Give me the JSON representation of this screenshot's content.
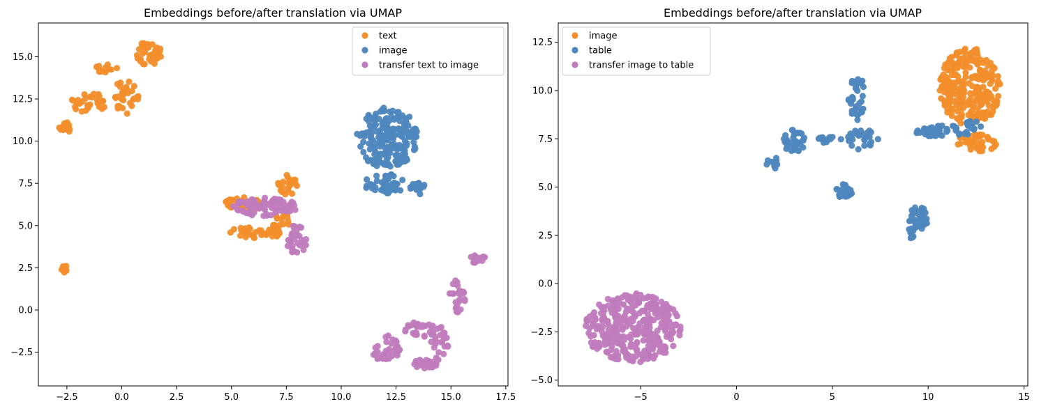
{
  "chart_data": [
    {
      "type": "scatter",
      "title": "Embeddings before/after translation via UMAP",
      "xlabel": "",
      "ylabel": "",
      "xlim": [
        -3.8,
        17.6
      ],
      "ylim": [
        -4.5,
        17.0
      ],
      "xticks": [
        -2.5,
        0.0,
        2.5,
        5.0,
        7.5,
        10.0,
        12.5,
        15.0,
        17.5
      ],
      "yticks": [
        -2.5,
        0.0,
        2.5,
        5.0,
        7.5,
        10.0,
        12.5,
        15.0
      ],
      "xtick_labels": [
        "−2.5",
        "0.0",
        "2.5",
        "5.0",
        "7.5",
        "10.0",
        "12.5",
        "15.0",
        "17.5"
      ],
      "ytick_labels": [
        "−2.5",
        "0.0",
        "2.5",
        "5.0",
        "7.5",
        "10.0",
        "12.5",
        "15.0"
      ],
      "grid": false,
      "legend_position": "top-right",
      "series": [
        {
          "name": "text",
          "color": "#f28e2b",
          "clusters": [
            {
              "cx": -2.6,
              "cy": 10.8,
              "rx": 0.25,
              "ry": 0.4,
              "n": 14
            },
            {
              "cx": -1.5,
              "cy": 12.3,
              "rx": 0.8,
              "ry": 0.6,
              "n": 30
            },
            {
              "cx": -0.7,
              "cy": 14.3,
              "rx": 0.5,
              "ry": 0.25,
              "n": 12
            },
            {
              "cx": 0.2,
              "cy": 12.6,
              "rx": 0.6,
              "ry": 1.1,
              "n": 30
            },
            {
              "cx": 1.2,
              "cy": 15.2,
              "rx": 0.6,
              "ry": 0.7,
              "n": 35
            },
            {
              "cx": -2.6,
              "cy": 2.4,
              "rx": 0.15,
              "ry": 0.25,
              "n": 10
            },
            {
              "cx": 5.5,
              "cy": 6.3,
              "rx": 0.9,
              "ry": 0.45,
              "n": 35
            },
            {
              "cx": 6.2,
              "cy": 4.6,
              "rx": 1.3,
              "ry": 0.35,
              "n": 40
            },
            {
              "cx": 7.6,
              "cy": 7.4,
              "rx": 0.5,
              "ry": 0.6,
              "n": 22
            },
            {
              "cx": 7.2,
              "cy": 5.4,
              "rx": 0.5,
              "ry": 0.6,
              "n": 18
            }
          ]
        },
        {
          "name": "image",
          "color": "#4e86be",
          "clusters": [
            {
              "cx": 12.1,
              "cy": 10.2,
              "rx": 1.4,
              "ry": 1.8,
              "n": 200
            },
            {
              "cx": 12.0,
              "cy": 7.5,
              "rx": 1.0,
              "ry": 0.6,
              "n": 45
            },
            {
              "cx": 13.5,
              "cy": 7.2,
              "rx": 0.35,
              "ry": 0.35,
              "n": 15
            }
          ]
        },
        {
          "name": "transfer text to image",
          "color": "#c07bbd",
          "clusters": [
            {
              "cx": 6.5,
              "cy": 6.1,
              "rx": 1.5,
              "ry": 0.55,
              "n": 75
            },
            {
              "cx": 8.0,
              "cy": 4.2,
              "rx": 0.5,
              "ry": 0.9,
              "n": 30
            },
            {
              "cx": 12.0,
              "cy": -2.2,
              "rx": 0.7,
              "ry": 0.9,
              "n": 35
            },
            {
              "cx": 13.6,
              "cy": -1.2,
              "rx": 0.7,
              "ry": 0.5,
              "n": 30
            },
            {
              "cx": 13.8,
              "cy": -3.2,
              "rx": 0.6,
              "ry": 0.3,
              "n": 30
            },
            {
              "cx": 14.5,
              "cy": -2.0,
              "rx": 0.4,
              "ry": 1.0,
              "n": 25
            },
            {
              "cx": 15.3,
              "cy": 0.8,
              "rx": 0.4,
              "ry": 1.0,
              "n": 25
            },
            {
              "cx": 16.2,
              "cy": 3.0,
              "rx": 0.4,
              "ry": 0.25,
              "n": 15
            }
          ]
        }
      ]
    },
    {
      "type": "scatter",
      "title": "Embeddings before/after translation via UMAP",
      "xlabel": "",
      "ylabel": "",
      "xlim": [
        -9.3,
        15.2
      ],
      "ylim": [
        -5.3,
        13.5
      ],
      "xticks": [
        -5,
        0,
        5,
        10,
        15
      ],
      "yticks": [
        -5.0,
        -2.5,
        0.0,
        2.5,
        5.0,
        7.5,
        10.0,
        12.5
      ],
      "xtick_labels": [
        "−5",
        "0",
        "5",
        "10",
        "15"
      ],
      "ytick_labels": [
        "−5.0",
        "−2.5",
        "0.0",
        "2.5",
        "5.0",
        "7.5",
        "10.0",
        "12.5"
      ],
      "grid": false,
      "legend_position": "top-left",
      "series": [
        {
          "name": "image",
          "color": "#f28e2b",
          "clusters": [
            {
              "cx": 12.2,
              "cy": 10.2,
              "rx": 1.6,
              "ry": 2.0,
              "n": 260
            },
            {
              "cx": 12.5,
              "cy": 7.3,
              "rx": 1.1,
              "ry": 0.5,
              "n": 45
            }
          ]
        },
        {
          "name": "table",
          "color": "#4e86be",
          "clusters": [
            {
              "cx": 6.3,
              "cy": 9.6,
              "rx": 0.45,
              "ry": 1.2,
              "n": 35
            },
            {
              "cx": 3.0,
              "cy": 7.4,
              "rx": 0.6,
              "ry": 0.6,
              "n": 35
            },
            {
              "cx": 1.9,
              "cy": 6.2,
              "rx": 0.35,
              "ry": 0.35,
              "n": 10
            },
            {
              "cx": 4.8,
              "cy": 7.4,
              "rx": 0.8,
              "ry": 0.25,
              "n": 12
            },
            {
              "cx": 6.6,
              "cy": 7.5,
              "rx": 0.8,
              "ry": 0.6,
              "n": 25
            },
            {
              "cx": 5.6,
              "cy": 4.8,
              "rx": 0.45,
              "ry": 0.35,
              "n": 25
            },
            {
              "cx": 9.5,
              "cy": 3.4,
              "rx": 0.5,
              "ry": 0.6,
              "n": 40
            },
            {
              "cx": 9.1,
              "cy": 2.6,
              "rx": 0.15,
              "ry": 0.35,
              "n": 10
            },
            {
              "cx": 10.8,
              "cy": 7.9,
              "rx": 1.5,
              "ry": 0.3,
              "n": 45
            },
            {
              "cx": 12.4,
              "cy": 8.2,
              "rx": 0.5,
              "ry": 0.3,
              "n": 15
            }
          ]
        },
        {
          "name": "transfer image to table",
          "color": "#c07bbd",
          "clusters": [
            {
              "cx": -5.4,
              "cy": -2.3,
              "rx": 2.5,
              "ry": 1.8,
              "n": 340
            }
          ]
        }
      ]
    }
  ]
}
